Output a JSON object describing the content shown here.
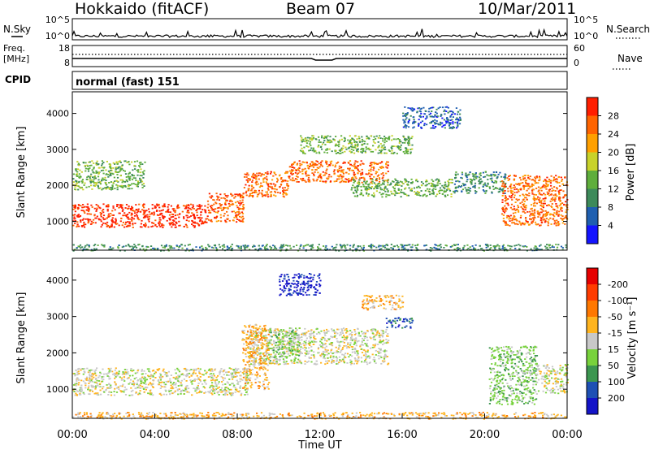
{
  "header": {
    "radar": "Hokkaido (fitACF)",
    "beam": "Beam 07",
    "date": "10/Mar/2011"
  },
  "top_panels": {
    "nsky_label": "N.Sky",
    "nsearch_label": "N.Search",
    "noise_ticks_left": [
      "10^5",
      "10^0"
    ],
    "noise_ticks_right": [
      "10^5",
      "10^0"
    ],
    "freq_label": "Freq.",
    "freq_unit": "[MHz]",
    "freq_ticks": [
      "18",
      "8"
    ],
    "nave_label": "Nave",
    "nave_ticks": [
      "60",
      "0"
    ],
    "cpid_label": "CPID",
    "cpid_text": "normal (fast) 151"
  },
  "chart_data": [
    {
      "type": "heatmap",
      "name": "power-panel",
      "ylabel": "Slant Range [km]",
      "ylim": [
        200,
        4600
      ],
      "yticks": [
        "1000",
        "2000",
        "3000",
        "4000"
      ],
      "colorbar": {
        "title": "Power [dB]",
        "ticks": [
          "4",
          "8",
          "12",
          "16",
          "20",
          "24",
          "28"
        ],
        "colors": [
          "#1414ff",
          "#1f5fb0",
          "#3d8a5a",
          "#5fae3c",
          "#c8d22a",
          "#ffa000",
          "#ff6400",
          "#ff1e00"
        ]
      },
      "regions": [
        {
          "t": [
            0.0,
            6.5
          ],
          "r": [
            850,
            1500
          ],
          "level": 7
        },
        {
          "t": [
            6.5,
            8.3
          ],
          "r": [
            1000,
            1800
          ],
          "level": 6
        },
        {
          "t": [
            8.3,
            10.5
          ],
          "r": [
            1700,
            2400
          ],
          "level": 6
        },
        {
          "t": [
            10.5,
            15.3
          ],
          "r": [
            2100,
            2700
          ],
          "level": 6
        },
        {
          "t": [
            0.0,
            3.5
          ],
          "r": [
            1900,
            2700
          ],
          "level": 3
        },
        {
          "t": [
            11.0,
            16.5
          ],
          "r": [
            2900,
            3400
          ],
          "level": 3
        },
        {
          "t": [
            13.5,
            18.5
          ],
          "r": [
            1700,
            2200
          ],
          "level": 3
        },
        {
          "t": [
            16.0,
            18.8
          ],
          "r": [
            3600,
            4200
          ],
          "level": 1
        },
        {
          "t": [
            18.5,
            21.0
          ],
          "r": [
            1800,
            2400
          ],
          "level": 2
        },
        {
          "t": [
            20.8,
            24.0
          ],
          "r": [
            900,
            2300
          ],
          "level": 6
        },
        {
          "t": [
            0.0,
            24.0
          ],
          "r": [
            200,
            380
          ],
          "level": 2
        }
      ]
    },
    {
      "type": "heatmap",
      "name": "velocity-panel",
      "xlabel": "Time UT",
      "ylabel": "Slant Range [km]",
      "ylim": [
        200,
        4600
      ],
      "yticks": [
        "1000",
        "2000",
        "3000",
        "4000"
      ],
      "xticks": [
        "00:00",
        "04:00",
        "08:00",
        "12:00",
        "16:00",
        "20:00",
        "00:00"
      ],
      "colorbar": {
        "title": "Velocity [m s⁻¹]",
        "ticks": [
          "200",
          "100",
          "50",
          "15",
          "-15",
          "-50",
          "-100",
          "-200"
        ],
        "colors": [
          "#1414c8",
          "#1e50b4",
          "#3c9650",
          "#78d23c",
          "#c8c8c8",
          "#ffb41e",
          "#ff7800",
          "#ff3c00",
          "#e60000"
        ]
      },
      "regions": [
        {
          "t": [
            0.0,
            8.5
          ],
          "r": [
            850,
            1600
          ],
          "level": 4
        },
        {
          "t": [
            8.5,
            15.3
          ],
          "r": [
            1700,
            2700
          ],
          "level": 4
        },
        {
          "t": [
            8.2,
            9.5
          ],
          "r": [
            1000,
            2800
          ],
          "level": 5
        },
        {
          "t": [
            9.5,
            11.0
          ],
          "r": [
            1800,
            2700
          ],
          "level": 3
        },
        {
          "t": [
            10.0,
            12.0
          ],
          "r": [
            3600,
            4200
          ],
          "level": 0
        },
        {
          "t": [
            14.0,
            16.0
          ],
          "r": [
            3200,
            3600
          ],
          "level": 5
        },
        {
          "t": [
            15.2,
            16.5
          ],
          "r": [
            2700,
            3000
          ],
          "level": 1
        },
        {
          "t": [
            20.2,
            22.5
          ],
          "r": [
            600,
            2200
          ],
          "level": 3
        },
        {
          "t": [
            22.5,
            24.0
          ],
          "r": [
            900,
            1700
          ],
          "level": 4
        },
        {
          "t": [
            0.0,
            24.0
          ],
          "r": [
            200,
            380
          ],
          "level": 5
        }
      ]
    }
  ]
}
